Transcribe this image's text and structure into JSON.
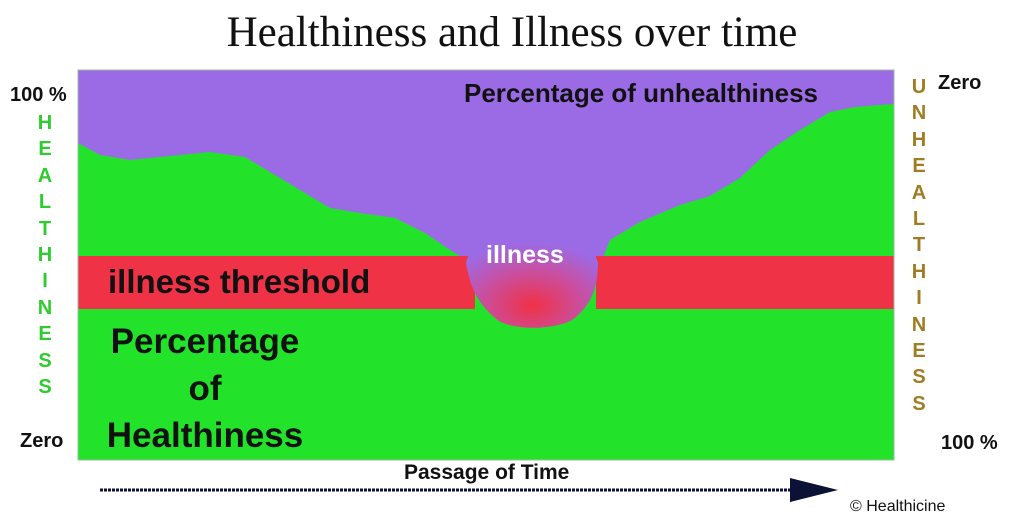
{
  "title": "Healthiness and Illness over time",
  "left_axis": {
    "top_label": "100 %",
    "bottom_label": "Zero",
    "letters": [
      "H",
      "E",
      "A",
      "L",
      "T",
      "H",
      "I",
      "N",
      "E",
      "S",
      "S"
    ],
    "color": "#2ecc2e"
  },
  "right_axis": {
    "top_label": "Zero",
    "bottom_label": "100 %",
    "letters": [
      "U",
      "N",
      "H",
      "E",
      "A",
      "L",
      "T",
      "H",
      "I",
      "N",
      "E",
      "S",
      "S"
    ],
    "color": "#a07d24"
  },
  "regions": {
    "unhealthiness_label": "Percentage of unhealthiness",
    "threshold_label": "illness threshold",
    "illness_label": "illness",
    "healthiness_label_1": "Percentage",
    "healthiness_label_2": "of",
    "healthiness_label_3": "Healthiness"
  },
  "x_axis_label": "Passage of Time",
  "copyright": "© Healthicine",
  "colors": {
    "purple": "#9b6be6",
    "green": "#22e32a",
    "red": "#f03246",
    "arrow": "#0b1236"
  }
}
